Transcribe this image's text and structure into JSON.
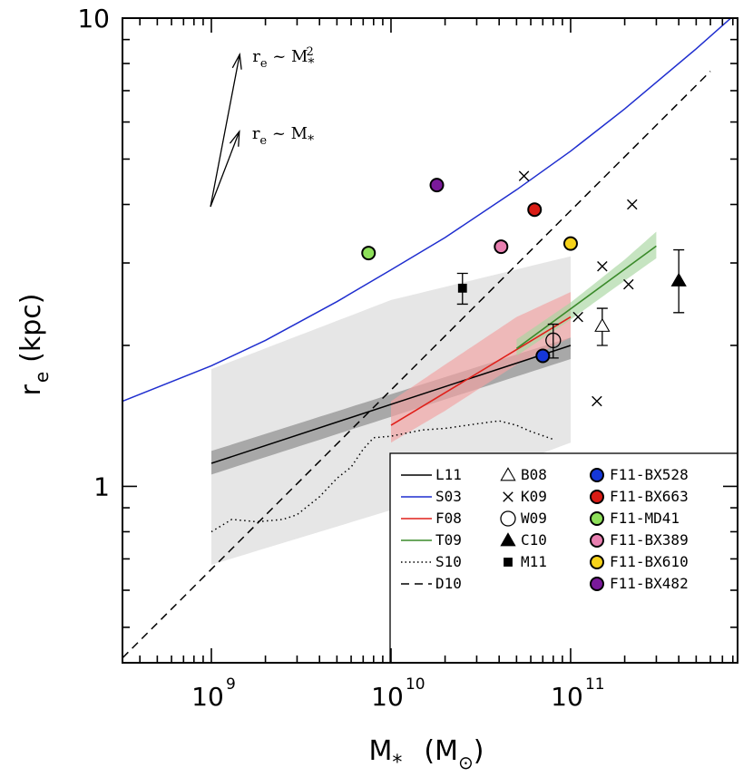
{
  "chart_data": {
    "type": "scatter",
    "title": "",
    "xlabel": "M",
    "xlabel_sub": "*",
    "xlabel_unit": "M",
    "xlabel_unit_sub": "⊙",
    "ylabel": "r",
    "ylabel_sub": "e",
    "ylabel_unit": "(kpc)",
    "xscale": "log",
    "yscale": "log",
    "xlim": [
      320000000.0,
      850000000000.0
    ],
    "ylim": [
      0.42,
      10
    ],
    "xticks": [
      {
        "base": "10",
        "exp": "9",
        "value": 1000000000.0
      },
      {
        "base": "10",
        "exp": "10",
        "value": 10000000000.0
      },
      {
        "base": "10",
        "exp": "11",
        "value": 100000000000.0
      }
    ],
    "yticks": [
      {
        "label": "1",
        "value": 1
      },
      {
        "label": "10",
        "value": 10
      }
    ],
    "annotations": [
      {
        "text_r": "r",
        "text_sub": "e",
        "text_rel": "~",
        "text_m": "M",
        "text_msub": "*",
        "text_sup": "2",
        "slope": 2
      },
      {
        "text_r": "r",
        "text_sub": "e",
        "text_rel": "~",
        "text_m": "M",
        "text_msub": "*",
        "text_sup": "",
        "slope": 1
      }
    ],
    "bands": [
      {
        "name": "gray-wide",
        "color": "#e6e6e6",
        "x": [
          1000000000.0,
          10000000000.0,
          100000000000.0
        ],
        "lower": [
          0.68,
          0.89,
          1.24
        ],
        "upper": [
          1.78,
          2.5,
          3.1
        ]
      },
      {
        "name": "gray-narrow",
        "color": "#a8a8a8",
        "x": [
          1000000000.0,
          100000000000.0
        ],
        "lower": [
          1.06,
          1.87
        ],
        "upper": [
          1.19,
          2.08
        ]
      },
      {
        "name": "F08-band",
        "color": "#f2a2a2",
        "x": [
          10000000000.0,
          20000000000.0,
          50000000000.0,
          100000000000.0
        ],
        "lower": [
          1.24,
          1.45,
          1.82,
          2.08
        ],
        "upper": [
          1.52,
          1.82,
          2.3,
          2.6
        ]
      },
      {
        "name": "T09-band",
        "color": "#a8d6a0",
        "x": [
          50000000000.0,
          100000000000.0,
          200000000000.0,
          300000000000.0
        ],
        "lower": [
          1.9,
          2.27,
          2.75,
          3.07
        ],
        "upper": [
          2.06,
          2.47,
          3.05,
          3.5
        ]
      }
    ],
    "series": [
      {
        "name": "L11",
        "style": "solid",
        "color": "#000000",
        "x": [
          1000000000.0,
          100000000000.0
        ],
        "y": [
          1.12,
          2.0
        ]
      },
      {
        "name": "S03",
        "style": "solid",
        "color": "#1f2ecf",
        "x": [
          320000000.0,
          1000000000.0,
          2000000000.0,
          5000000000.0,
          10000000000.0,
          20000000000.0,
          50000000000.0,
          100000000000.0,
          200000000000.0,
          500000000000.0,
          850000000000.0
        ],
        "y": [
          1.52,
          1.81,
          2.05,
          2.48,
          2.9,
          3.4,
          4.3,
          5.2,
          6.4,
          8.6,
          10.3
        ]
      },
      {
        "name": "F08",
        "style": "solid",
        "color": "#e0201a",
        "x": [
          10000000000.0,
          100000000000.0
        ],
        "y": [
          1.35,
          2.3
        ]
      },
      {
        "name": "T09",
        "style": "solid",
        "color": "#3a8a2a",
        "x": [
          50000000000.0,
          300000000000.0
        ],
        "y": [
          1.97,
          3.26
        ]
      },
      {
        "name": "S10",
        "style": "dotted",
        "color": "#000000",
        "x": [
          1000000000.0,
          1300000000.0,
          1800000000.0,
          2500000000.0,
          3000000000.0,
          4000000000.0,
          5000000000.0,
          6000000000.0,
          7000000000.0,
          8000000000.0,
          10000000000.0,
          15000000000.0,
          20000000000.0,
          30000000000.0,
          40000000000.0,
          50000000000.0,
          60000000000.0,
          80000000000.0
        ],
        "y": [
          0.8,
          0.85,
          0.84,
          0.85,
          0.87,
          0.95,
          1.04,
          1.1,
          1.2,
          1.27,
          1.28,
          1.32,
          1.33,
          1.36,
          1.38,
          1.35,
          1.31,
          1.26
        ]
      },
      {
        "name": "D10",
        "style": "dashed",
        "color": "#000000",
        "x": [
          320000000.0,
          600000000000.0
        ],
        "y": [
          0.43,
          7.7
        ]
      }
    ],
    "points": [
      {
        "name": "B08",
        "marker": "triangle-open",
        "x": 150000000000.0,
        "y": 2.2,
        "yerr": [
          0.2,
          0.2
        ]
      },
      {
        "name": "K09",
        "marker": "cross",
        "x": [
          55000000000.0,
          110000000000.0,
          150000000000.0,
          140000000000.0,
          220000000000.0,
          210000000000.0
        ],
        "y": [
          4.6,
          2.3,
          2.95,
          1.52,
          4.0,
          2.7
        ]
      },
      {
        "name": "W09",
        "marker": "circle-open",
        "x": 80000000000.0,
        "y": 2.05,
        "yerr": [
          0.17,
          0.17
        ]
      },
      {
        "name": "C10",
        "marker": "triangle-filled",
        "x": 400000000000.0,
        "y": 2.75,
        "yerr": [
          0.4,
          0.45
        ]
      },
      {
        "name": "M11",
        "marker": "square-filled",
        "x": 25000000000.0,
        "y": 2.65,
        "yerr": [
          0.2,
          0.2
        ]
      },
      {
        "name": "F11-BX528",
        "marker": "circle-filled",
        "color": "#1537d8",
        "x": 70000000000.0,
        "y": 1.9
      },
      {
        "name": "F11-BX663",
        "marker": "circle-filled",
        "color": "#d91c15",
        "x": 63000000000.0,
        "y": 3.9
      },
      {
        "name": "F11-MD41",
        "marker": "circle-filled",
        "color": "#8ee05a",
        "x": 7500000000.0,
        "y": 3.15
      },
      {
        "name": "F11-BX389",
        "marker": "circle-filled",
        "color": "#e87fb0",
        "x": 41000000000.0,
        "y": 3.25
      },
      {
        "name": "F11-BX610",
        "marker": "circle-filled",
        "color": "#f6d21a",
        "x": 100000000000.0,
        "y": 3.3
      },
      {
        "name": "F11-BX482",
        "marker": "circle-filled",
        "color": "#7a1a9a",
        "x": 18000000000.0,
        "y": 4.4
      }
    ],
    "legend": {
      "position": "bottom-right",
      "columns": [
        [
          {
            "label": "L11",
            "symbol": "line-solid",
            "color": "#000000"
          },
          {
            "label": "S03",
            "symbol": "line-solid",
            "color": "#1f2ecf"
          },
          {
            "label": "F08",
            "symbol": "line-solid",
            "color": "#e0201a"
          },
          {
            "label": "T09",
            "symbol": "line-solid",
            "color": "#3a8a2a"
          },
          {
            "label": "S10",
            "symbol": "line-dotted",
            "color": "#000000"
          },
          {
            "label": "D10",
            "symbol": "line-dashed",
            "color": "#000000"
          }
        ],
        [
          {
            "label": "B08",
            "symbol": "triangle-open",
            "color": "#000000"
          },
          {
            "label": "K09",
            "symbol": "cross",
            "color": "#000000"
          },
          {
            "label": "W09",
            "symbol": "circle-open",
            "color": "#000000"
          },
          {
            "label": "C10",
            "symbol": "triangle-filled",
            "color": "#000000"
          },
          {
            "label": "M11",
            "symbol": "square-filled",
            "color": "#000000"
          }
        ],
        [
          {
            "label": "F11-BX528",
            "symbol": "circle-filled",
            "color": "#1537d8"
          },
          {
            "label": "F11-BX663",
            "symbol": "circle-filled",
            "color": "#d91c15"
          },
          {
            "label": "F11-MD41",
            "symbol": "circle-filled",
            "color": "#8ee05a"
          },
          {
            "label": "F11-BX389",
            "symbol": "circle-filled",
            "color": "#e87fb0"
          },
          {
            "label": "F11-BX610",
            "symbol": "circle-filled",
            "color": "#f6d21a"
          },
          {
            "label": "F11-BX482",
            "symbol": "circle-filled",
            "color": "#7a1a9a"
          }
        ]
      ]
    }
  }
}
